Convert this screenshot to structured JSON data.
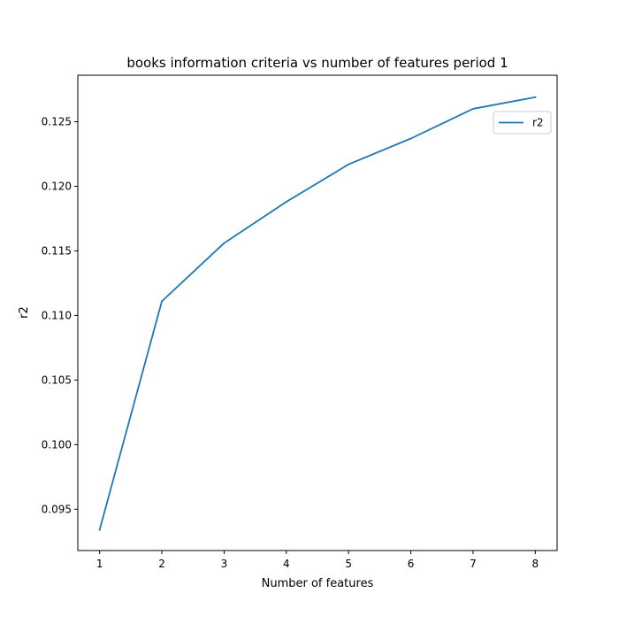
{
  "chart_data": {
    "type": "line",
    "title": "books information criteria vs number of features period 1",
    "xlabel": "Number of features",
    "ylabel": "r2",
    "x": [
      1,
      2,
      3,
      4,
      5,
      6,
      7,
      8
    ],
    "series": [
      {
        "name": "r2",
        "values": [
          0.0934,
          0.1111,
          0.1156,
          0.1188,
          0.1217,
          0.1237,
          0.126,
          0.1269
        ],
        "color": "#1f77b4"
      }
    ],
    "xlim": [
      0.65,
      8.35
    ],
    "ylim": [
      0.0918,
      0.1286
    ],
    "xticks": [
      1,
      2,
      3,
      4,
      5,
      6,
      7,
      8
    ],
    "xtick_labels": [
      "1",
      "2",
      "3",
      "4",
      "5",
      "6",
      "7",
      "8"
    ],
    "yticks": [
      0.095,
      0.1,
      0.105,
      0.11,
      0.115,
      0.12,
      0.125
    ],
    "ytick_labels": [
      "0.095",
      "0.100",
      "0.105",
      "0.110",
      "0.115",
      "0.120",
      "0.125"
    ],
    "grid": false,
    "legend": "upper right"
  }
}
